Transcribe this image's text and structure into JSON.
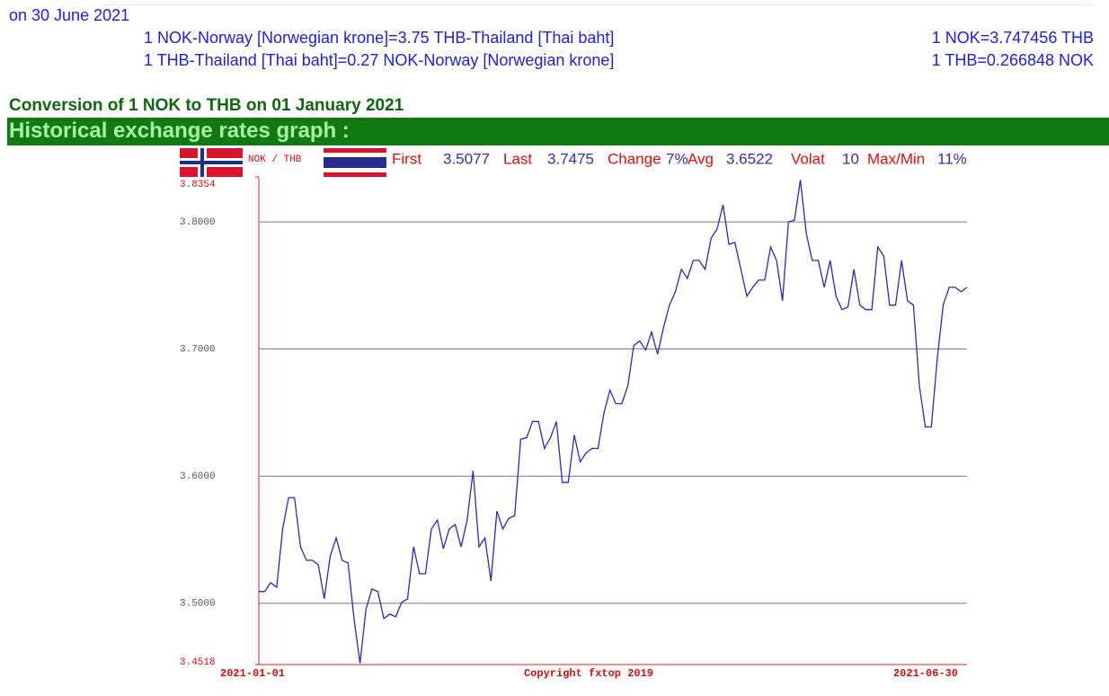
{
  "header": {
    "date_line": "on 30 June 2021"
  },
  "conversions": [
    {
      "left": "1 NOK-Norway [Norwegian krone]=3.75 THB-Thailand [Thai baht]",
      "right": "1 NOK=3.747456 THB"
    },
    {
      "left": "1 THB-Thailand [Thai baht]=0.27 NOK-Norway [Norwegian krone]",
      "right": "1 THB=0.266848 NOK"
    }
  ],
  "conversion_title": "Conversion of 1 NOK to THB on 01 January 2021",
  "graph_heading": "Historical exchange rates graph :",
  "chart_data": {
    "type": "line",
    "pair": "NOK / THB",
    "stats": [
      {
        "label": "First",
        "value": "3.5077"
      },
      {
        "label": "Last",
        "value": "3.7475"
      },
      {
        "label": "Change",
        "value": "7%"
      },
      {
        "label": "Avg",
        "value": "3.6522"
      },
      {
        "label": "Volat",
        "value": "10"
      },
      {
        "label": "Max/Min",
        "value": "11%"
      }
    ],
    "xlabels": [
      "2021-01-01",
      "Copyright fxtop 2019",
      "2021-06-30"
    ],
    "color": "#2a2ab8",
    "grid": true,
    "ylim": [
      3.4518,
      3.8354
    ],
    "yticks": [
      3.4518,
      {
        "value": 3.5,
        "label": "3.5000"
      },
      {
        "value": 3.6,
        "label": "3.6000"
      },
      {
        "value": 3.7,
        "label": "3.7000"
      },
      {
        "value": 3.8,
        "label": "3.8000"
      },
      3.8354
    ],
    "values": [
      3.5092,
      3.5092,
      3.5162,
      3.5127,
      3.5585,
      3.5831,
      3.5831,
      3.5444,
      3.5338,
      3.5338,
      3.5303,
      3.5035,
      3.5373,
      3.5514,
      3.5338,
      3.5317,
      3.488,
      3.4528,
      3.4951,
      3.5113,
      3.5092,
      3.488,
      3.4915,
      3.4894,
      3.5007,
      3.5035,
      3.5444,
      3.5232,
      3.5232,
      3.5585,
      3.5655,
      3.543,
      3.5585,
      3.562,
      3.5444,
      3.5655,
      3.6042,
      3.5444,
      3.5514,
      3.5176,
      3.5725,
      3.5585,
      3.5669,
      3.569,
      3.6289,
      3.6303,
      3.643,
      3.643,
      3.6218,
      3.6303,
      3.643,
      3.5951,
      3.5951,
      3.6324,
      3.6113,
      3.6183,
      3.6218,
      3.6218,
      3.65,
      3.6676,
      3.657,
      3.657,
      3.6711,
      3.7028,
      3.7063,
      3.6993,
      3.7134,
      3.6958,
      3.7169,
      3.7345,
      3.7451,
      3.7627,
      3.7556,
      3.7697,
      3.7697,
      3.7627,
      3.7873,
      3.7944,
      3.8134,
      3.7824,
      3.7838,
      3.7627,
      3.7415,
      3.7486,
      3.7542,
      3.7542,
      3.7803,
      3.7697,
      3.738,
      3.8,
      3.8014,
      3.8331,
      3.7908,
      3.7697,
      3.7697,
      3.7486,
      3.7697,
      3.7415,
      3.731,
      3.7331,
      3.7627,
      3.7345,
      3.731,
      3.731,
      3.7803,
      3.7732,
      3.7345,
      3.7345,
      3.7697,
      3.738,
      3.7345,
      3.6711,
      3.6387,
      3.6387,
      3.6923,
      3.7345,
      3.7486,
      3.7486,
      3.7451,
      3.7486
    ]
  }
}
